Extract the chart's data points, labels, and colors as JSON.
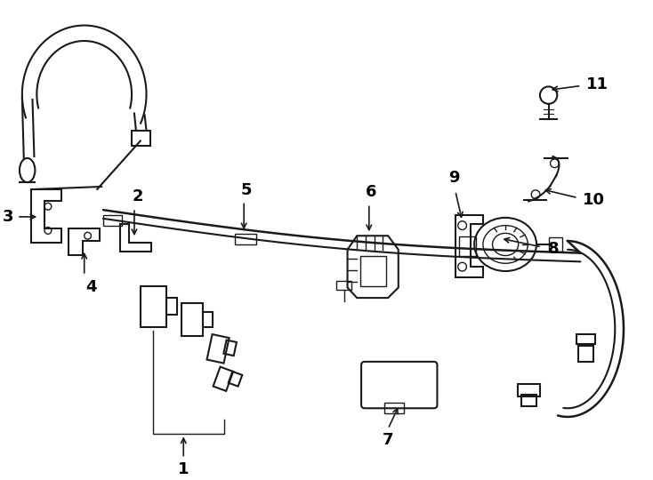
{
  "title": "",
  "bg_color": "#ffffff",
  "line_color": "#1a1a1a",
  "text_color": "#000000",
  "line_width": 1.5,
  "figsize": [
    7.34,
    5.4
  ],
  "dpi": 100
}
